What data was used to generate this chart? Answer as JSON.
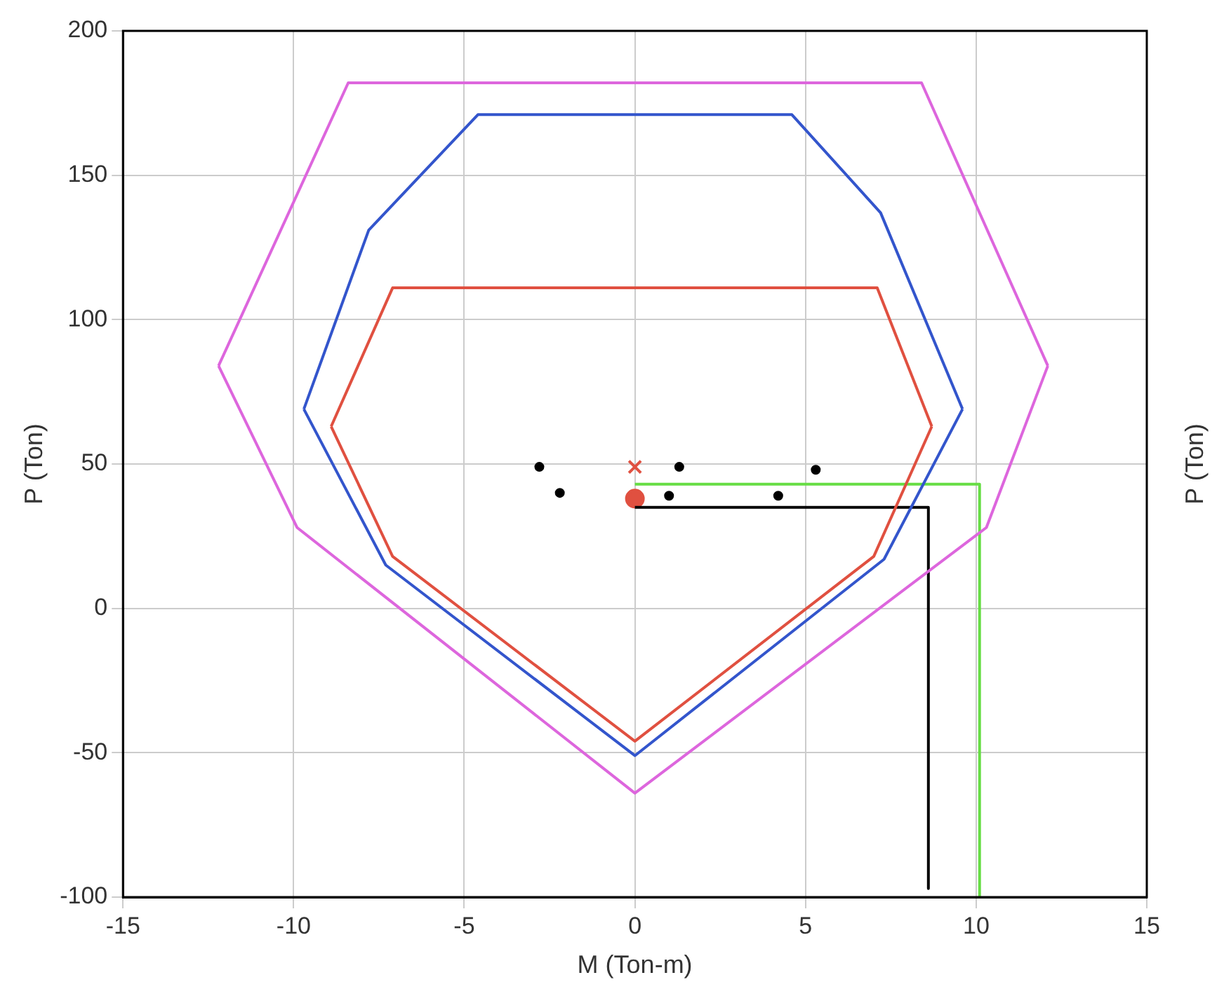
{
  "chart_data": {
    "type": "line",
    "xlabel": "M (Ton-m)",
    "ylabel": "P (Ton)",
    "y2label": "P (Ton)",
    "xlim": [
      -15,
      15
    ],
    "xticks": [
      -15,
      -10,
      -5,
      0,
      5,
      10,
      15
    ],
    "ylim": [
      -100,
      200
    ],
    "yticks": [
      -100,
      -50,
      0,
      50,
      100,
      150,
      200
    ],
    "grid": true,
    "legend": false,
    "series": [
      {
        "color": "#dd66dd",
        "x": [
          -12.2,
          -8.4,
          8.4,
          12.1
        ],
        "values": [
          84,
          182,
          182,
          84
        ]
      },
      {
        "color": "#dd66dd",
        "x": [
          -12.2,
          -9.9,
          0,
          10.3,
          12.1
        ],
        "values": [
          84,
          28,
          -64,
          28,
          84
        ]
      },
      {
        "color": "#3355cc",
        "x": [
          -9.7,
          -7.8,
          -4.6,
          4.6,
          7.2,
          9.6
        ],
        "values": [
          69,
          131,
          171,
          171,
          137,
          69
        ]
      },
      {
        "color": "#3355cc",
        "x": [
          -9.7,
          -7.3,
          0,
          7.3,
          9.6
        ],
        "values": [
          69,
          15,
          -51,
          17,
          69
        ]
      },
      {
        "color": "#e05040",
        "x": [
          -8.9,
          -7.1,
          7.1,
          8.7
        ],
        "values": [
          63,
          111,
          111,
          63
        ]
      },
      {
        "color": "#e05040",
        "x": [
          -8.9,
          -7.1,
          0,
          7.0,
          8.7
        ],
        "values": [
          63,
          18,
          -46,
          18,
          63
        ]
      },
      {
        "color": "#66dd44",
        "x": [
          0,
          10.1,
          10.1
        ],
        "values": [
          43,
          43,
          -100
        ]
      },
      {
        "color": "#000000",
        "x": [
          0,
          8.6,
          8.6
        ],
        "values": [
          35,
          35,
          -97
        ]
      },
      {
        "type": "scatter",
        "color": "#000000",
        "marker": "circle",
        "x": [
          -2.8,
          -2.2,
          1.3,
          1.0,
          5.3,
          4.2
        ],
        "values": [
          49,
          40,
          49,
          39,
          48,
          39
        ]
      },
      {
        "type": "scatter",
        "color": "#e05040",
        "marker": "cross",
        "x": [
          0
        ],
        "values": [
          49
        ]
      },
      {
        "type": "scatter",
        "color": "#e05040",
        "marker": "circle",
        "x": [
          0
        ],
        "values": [
          38
        ]
      }
    ]
  }
}
